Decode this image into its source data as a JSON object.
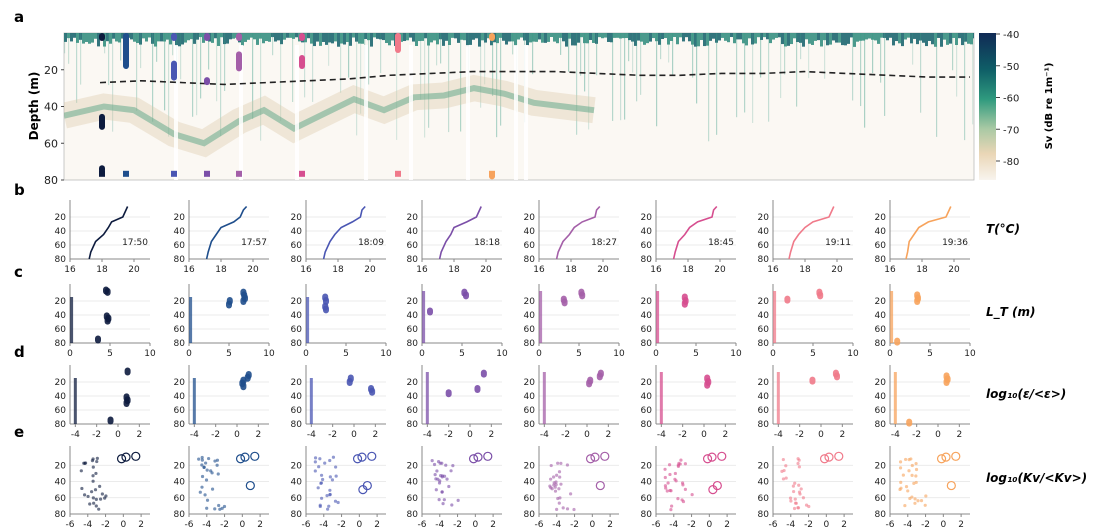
{
  "chart_data": [
    {
      "panel": "a",
      "type": "heatmap",
      "ylabel": "Depth (m)",
      "yticks": [
        20,
        40,
        60,
        80
      ],
      "ylim": [
        0,
        80
      ],
      "colorbar": {
        "label": "Sv (dB re 1m⁻¹)",
        "ticks": [
          -40,
          -50,
          -60,
          -70,
          -80
        ],
        "colors": [
          "#173366",
          "#0f6a6a",
          "#37a688",
          "#e6d3b5",
          "#f7f2ea"
        ]
      },
      "mixed_layer_depth": [
        27,
        26,
        27,
        28,
        27,
        26,
        25,
        23,
        22,
        21,
        21,
        21,
        22,
        23,
        23,
        22,
        22,
        21,
        22,
        23,
        24,
        24
      ],
      "station_colors": [
        "#0d1b3e",
        "#1f4e8c",
        "#4a56b3",
        "#7b4fa8",
        "#a45fa8",
        "#d64e8f",
        "#f07a8a",
        "#f7a35c"
      ]
    },
    {
      "panel": "b",
      "type": "line",
      "xlabel": "T(°C)",
      "xticks": [
        16,
        18,
        20
      ],
      "yticks": [
        20,
        40,
        60,
        80
      ],
      "times": [
        "17:50",
        "17:57",
        "18:09",
        "18:18",
        "18:27",
        "18:45",
        "19:11",
        "19:36"
      ],
      "series": [
        {
          "x": [
            19.6,
            19.5,
            19.3,
            18.6,
            18.4,
            18.1,
            17.6,
            17.3,
            17.2
          ],
          "y": [
            5,
            10,
            20,
            27,
            35,
            45,
            55,
            70,
            80
          ]
        },
        {
          "x": [
            19.6,
            19.4,
            19.2,
            18.8,
            18.0,
            17.7,
            17.4,
            17.2,
            17.1
          ],
          "y": [
            5,
            10,
            20,
            27,
            35,
            45,
            55,
            70,
            80
          ]
        },
        {
          "x": [
            19.7,
            19.5,
            19.4,
            18.9,
            18.2,
            17.8,
            17.5,
            17.2,
            17.1
          ],
          "y": [
            5,
            10,
            20,
            27,
            35,
            45,
            55,
            70,
            80
          ]
        },
        {
          "x": [
            19.7,
            19.6,
            19.4,
            18.8,
            18.0,
            17.8,
            17.5,
            17.2,
            17.1
          ],
          "y": [
            5,
            10,
            20,
            27,
            35,
            45,
            55,
            70,
            80
          ]
        },
        {
          "x": [
            19.8,
            19.6,
            19.5,
            18.7,
            18.2,
            17.9,
            17.5,
            17.2,
            17.1
          ],
          "y": [
            5,
            10,
            20,
            27,
            35,
            45,
            55,
            70,
            80
          ]
        },
        {
          "x": [
            19.8,
            19.6,
            19.5,
            18.6,
            18.1,
            17.8,
            17.4,
            17.2,
            17.1
          ],
          "y": [
            5,
            10,
            20,
            27,
            35,
            45,
            55,
            70,
            80
          ]
        },
        {
          "x": [
            19.8,
            19.7,
            19.5,
            18.5,
            18.0,
            17.6,
            17.3,
            17.1,
            17.0
          ],
          "y": [
            5,
            10,
            20,
            27,
            35,
            45,
            55,
            70,
            80
          ]
        },
        {
          "x": [
            19.8,
            19.7,
            19.5,
            18.4,
            17.8,
            17.5,
            17.2,
            17.1,
            17.0
          ],
          "y": [
            5,
            10,
            20,
            27,
            35,
            45,
            55,
            70,
            80
          ]
        }
      ]
    },
    {
      "panel": "c",
      "type": "scatter",
      "xlabel": "L_T (m)",
      "xticks": [
        0,
        5,
        10
      ],
      "yticks": [
        20,
        40,
        60,
        80
      ],
      "series": [
        {
          "points": [
            [
              4.5,
              5
            ],
            [
              4.7,
              7
            ],
            [
              4.6,
              42
            ],
            [
              4.8,
              45
            ],
            [
              4.7,
              48
            ],
            [
              3.5,
              75
            ]
          ]
        },
        {
          "points": [
            [
              6.8,
              8
            ],
            [
              6.9,
              12
            ],
            [
              7.0,
              16
            ],
            [
              6.8,
              20
            ],
            [
              5.1,
              20
            ],
            [
              5.0,
              25
            ]
          ]
        },
        {
          "points": [
            [
              2.4,
              15
            ],
            [
              2.5,
              20
            ],
            [
              2.4,
              28
            ],
            [
              2.5,
              32
            ]
          ]
        },
        {
          "points": [
            [
              5.3,
              8
            ],
            [
              5.5,
              12
            ],
            [
              1.0,
              35
            ]
          ]
        },
        {
          "points": [
            [
              5.3,
              8
            ],
            [
              5.4,
              12
            ],
            [
              3.1,
              18
            ],
            [
              3.2,
              22
            ]
          ]
        },
        {
          "points": [
            [
              3.6,
              15
            ],
            [
              3.7,
              20
            ],
            [
              3.6,
              24
            ]
          ]
        },
        {
          "points": [
            [
              5.8,
              8
            ],
            [
              5.9,
              12
            ],
            [
              1.8,
              18
            ]
          ]
        },
        {
          "points": [
            [
              3.4,
              12
            ],
            [
              3.5,
              16
            ],
            [
              3.4,
              20
            ],
            [
              0.9,
              78
            ]
          ]
        }
      ]
    },
    {
      "panel": "d",
      "type": "scatter",
      "xlabel": "log₁₀(ε/<ε>)",
      "xticks": [
        -4,
        -2,
        0,
        2
      ],
      "yticks": [
        20,
        40,
        60,
        80
      ],
      "series": [
        {
          "points": [
            [
              0.9,
              5
            ],
            [
              0.8,
              42
            ],
            [
              0.9,
              46
            ],
            [
              0.8,
              50
            ],
            [
              -0.7,
              75
            ]
          ]
        },
        {
          "points": [
            [
              1.1,
              10
            ],
            [
              1.0,
              14
            ],
            [
              0.6,
              18
            ],
            [
              0.5,
              22
            ],
            [
              0.6,
              26
            ]
          ]
        },
        {
          "points": [
            [
              -0.3,
              15
            ],
            [
              -0.4,
              20
            ],
            [
              1.6,
              30
            ],
            [
              1.7,
              34
            ]
          ]
        },
        {
          "points": [
            [
              1.3,
              8
            ],
            [
              0.7,
              30
            ],
            [
              -2.0,
              36
            ]
          ]
        },
        {
          "points": [
            [
              1.3,
              8
            ],
            [
              1.2,
              12
            ],
            [
              0.3,
              18
            ],
            [
              0.2,
              22
            ]
          ]
        },
        {
          "points": [
            [
              0.3,
              15
            ],
            [
              0.4,
              20
            ],
            [
              0.3,
              24
            ]
          ]
        },
        {
          "points": [
            [
              1.4,
              8
            ],
            [
              1.5,
              12
            ],
            [
              -0.8,
              18
            ]
          ]
        },
        {
          "points": [
            [
              0.8,
              12
            ],
            [
              0.9,
              16
            ],
            [
              0.8,
              20
            ],
            [
              -2.7,
              78
            ]
          ]
        }
      ]
    },
    {
      "panel": "e",
      "type": "scatter",
      "xlabel": "log₁₀(Kv/<Kv>)",
      "xticks": [
        -6,
        -4,
        -2,
        0,
        2
      ],
      "yticks": [
        20,
        40,
        60,
        80
      ],
      "stations": 8
    }
  ]
}
